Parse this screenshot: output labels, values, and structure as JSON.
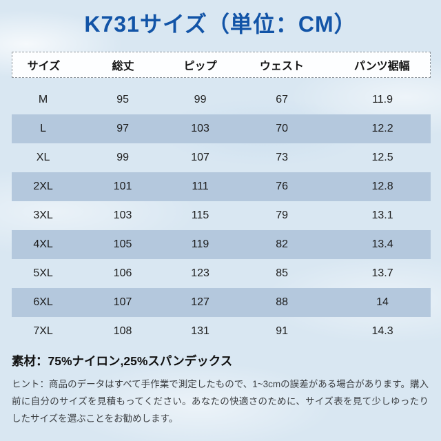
{
  "title": "K731サイズ（単位：CM）",
  "chart_data": {
    "type": "table",
    "title": "K731サイズ（単位：CM）",
    "unit": "CM",
    "columns": [
      "サイズ",
      "総丈",
      "ピップ",
      "ウェスト",
      "パンツ裾幅"
    ],
    "rows": [
      [
        "M",
        "95",
        "99",
        "67",
        "11.9"
      ],
      [
        "L",
        "97",
        "103",
        "70",
        "12.2"
      ],
      [
        "XL",
        "99",
        "107",
        "73",
        "12.5"
      ],
      [
        "2XL",
        "101",
        "111",
        "76",
        "12.8"
      ],
      [
        "3XL",
        "103",
        "115",
        "79",
        "13.1"
      ],
      [
        "4XL",
        "105",
        "119",
        "82",
        "13.4"
      ],
      [
        "5XL",
        "106",
        "123",
        "85",
        "13.7"
      ],
      [
        "6XL",
        "107",
        "127",
        "88",
        "14"
      ],
      [
        "7XL",
        "108",
        "131",
        "91",
        "14.3"
      ]
    ],
    "layout_hints": {
      "highlighted_row_indices": [
        1,
        3,
        5,
        7
      ],
      "header_border": "dashed",
      "grid": false
    }
  },
  "material": "素材：75%ナイロン,25%スパンデックス",
  "hint": "ヒント：商品のデータはすべて手作業で測定したもので、1~3cmの誤差がある場合があります。購入前に自分のサイズを見積もってください。あなたの快適さのために、サイズ表を見て少しゆったりしたサイズを選ぶことをお勧めします。",
  "colors": {
    "title_blue": "#1254a7",
    "row_highlight": "#b4c8dd",
    "header_bg": "#fdfeff",
    "text_dark": "#1c1c1c",
    "hint_gray": "#3b3e41",
    "background_sky": "#d9e7f2"
  }
}
